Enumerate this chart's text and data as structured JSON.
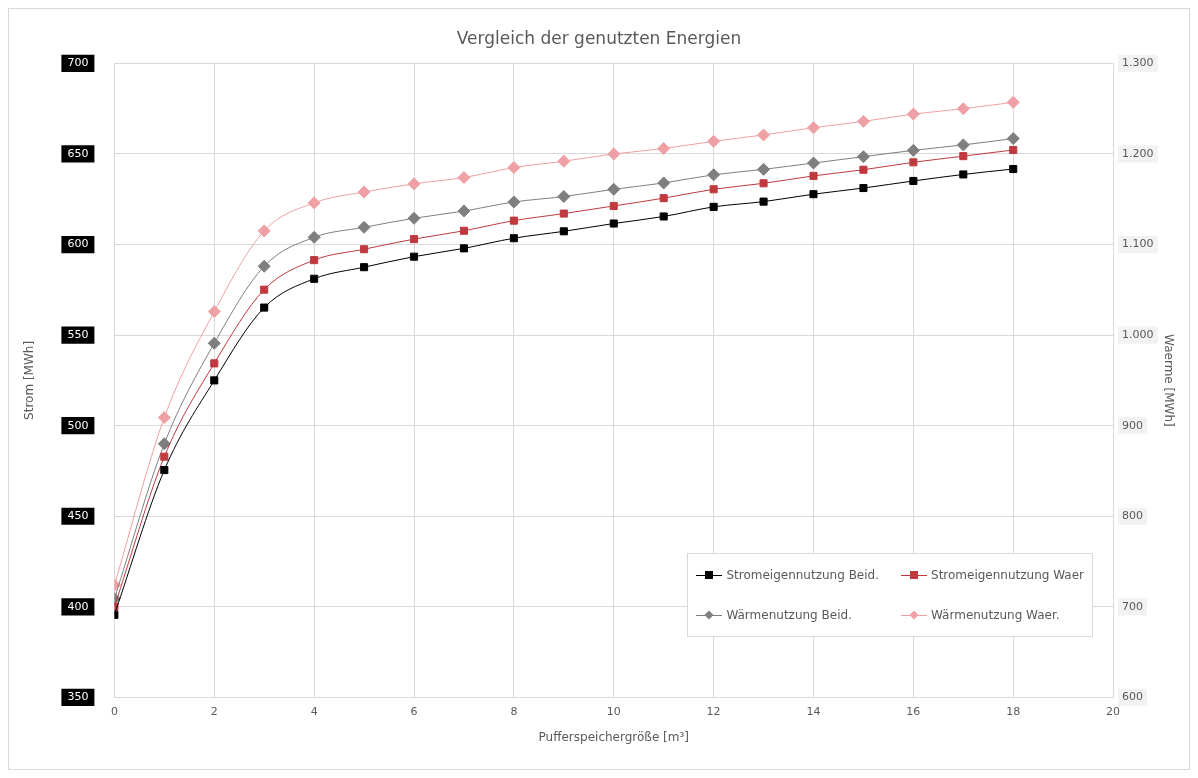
{
  "chart_data": {
    "type": "line",
    "title": "Vergleich der genutzten Energien",
    "xlabel": "Pufferspeichergröße [m³]",
    "ylabel": "Strom [MWh]",
    "y2label": "Waerme [MWh]",
    "x": [
      0,
      1,
      2,
      3,
      4,
      5,
      6,
      7,
      8,
      9,
      10,
      11,
      12,
      13,
      14,
      15,
      16,
      17,
      18
    ],
    "series": [
      {
        "name": "Stromeigennutzung Beid.",
        "color": "#000000",
        "marker": "square",
        "values": [
          395.6,
          475.5,
          525,
          565.2,
          581.1,
          587.5,
          593.3,
          597.9,
          603.5,
          607.3,
          611.6,
          615.5,
          620.8,
          623.7,
          627.8,
          631.2,
          635.1,
          638.7,
          641.7
        ]
      },
      {
        "name": "Stromeigennutzung Waer",
        "color": "#c0393f",
        "marker": "square",
        "values": [
          400,
          482.9,
          534.4,
          575.1,
          591.4,
          597.4,
          603,
          607.6,
          613.2,
          617.1,
          621.3,
          625.6,
          630.5,
          633.8,
          637.9,
          641.3,
          645.4,
          648.8,
          652.2
        ]
      },
      {
        "name": "Wärmenutzung Beid.",
        "color": "#7f7f7f",
        "marker": "diamond",
        "axis": "y2",
        "values": [
          709,
          880,
          991,
          1076,
          1108,
          1119,
          1129,
          1137,
          1147,
          1153,
          1161,
          1168,
          1177,
          1183,
          1190,
          1197,
          1204,
          1210,
          1217
        ]
      },
      {
        "name": "Wärmenutzung Waer.",
        "color": "#eea0a4",
        "marker": "diamond",
        "axis": "y2",
        "values": [
          724,
          909,
          1026,
          1115,
          1146,
          1158,
          1167,
          1174,
          1185,
          1192,
          1200,
          1206,
          1214,
          1221,
          1229,
          1236,
          1244,
          1250,
          1257
        ]
      }
    ],
    "xlim": [
      0,
      20
    ],
    "xticks": [
      0,
      2,
      4,
      6,
      8,
      10,
      12,
      14,
      16,
      18,
      20
    ],
    "ylim": [
      350,
      700
    ],
    "yticks": [
      350,
      400,
      450,
      500,
      550,
      600,
      650,
      700
    ],
    "y2lim": [
      600,
      1300
    ],
    "y2ticks": [
      600,
      700,
      800,
      900,
      {
        "value": 1000,
        "label": "1.000"
      },
      {
        "value": 1100,
        "label": "1.100"
      },
      {
        "value": 1200,
        "label": "1.200"
      },
      {
        "value": 1300,
        "label": "1.300"
      }
    ],
    "grid": true,
    "legend": "bottom right",
    "line_style": "solid"
  }
}
